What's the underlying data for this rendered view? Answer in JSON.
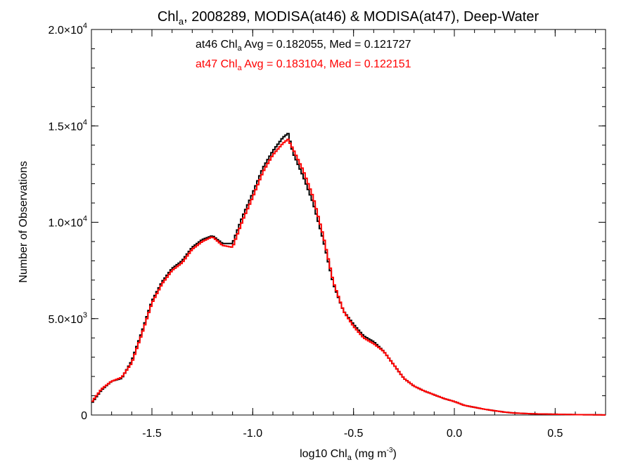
{
  "chart_data": {
    "type": "step-histogram",
    "title": {
      "pre": "Chl",
      "sub": "a",
      "post": ", 2008289, MODISA(at46) & MODISA(at47), Deep-Water"
    },
    "xlabel": {
      "pre": "log10 Chl",
      "sub": "a",
      "mid": " (mg m",
      "sup": "-3",
      "post": ")"
    },
    "ylabel": "Number of Observations",
    "xlim": [
      -1.8,
      0.75
    ],
    "ylim": [
      0,
      20000
    ],
    "x_ticks": [
      {
        "value": -1.5,
        "label": "-1.5"
      },
      {
        "value": -1.0,
        "label": "-1.0"
      },
      {
        "value": -0.5,
        "label": "-0.5"
      },
      {
        "value": 0.0,
        "label": "0.0"
      },
      {
        "value": 0.5,
        "label": "0.5"
      }
    ],
    "y_ticks": [
      {
        "value": 0,
        "mant": "0",
        "exp": ""
      },
      {
        "value": 5000,
        "mant": "5.0×10",
        "exp": "3"
      },
      {
        "value": 10000,
        "mant": "1.0×10",
        "exp": "4"
      },
      {
        "value": 15000,
        "mant": "1.5×10",
        "exp": "4"
      },
      {
        "value": 20000,
        "mant": "2.0×10",
        "exp": "4"
      }
    ],
    "annotations": [
      {
        "pre": "at46 Chl",
        "sub": "a",
        "post": " Avg = 0.182055, Med = 0.121727",
        "color": "#000000"
      },
      {
        "pre": "at47 Chl",
        "sub": "a",
        "post": " Avg = 0.183104, Med = 0.122151",
        "color": "#ff0000"
      }
    ],
    "series": [
      {
        "name": "at46",
        "color": "#000000",
        "x": [
          -1.8,
          -1.75,
          -1.7,
          -1.65,
          -1.6,
          -1.55,
          -1.5,
          -1.45,
          -1.4,
          -1.35,
          -1.3,
          -1.25,
          -1.2,
          -1.15,
          -1.1,
          -1.05,
          -1.0,
          -0.95,
          -0.9,
          -0.85,
          -0.825,
          -0.8,
          -0.75,
          -0.7,
          -0.65,
          -0.6,
          -0.55,
          -0.5,
          -0.45,
          -0.4,
          -0.35,
          -0.3,
          -0.25,
          -0.2,
          -0.15,
          -0.1,
          -0.05,
          0.0,
          0.05,
          0.1,
          0.15,
          0.2,
          0.25,
          0.3,
          0.35,
          0.4,
          0.45,
          0.5,
          0.55,
          0.6,
          0.65,
          0.7,
          0.75
        ],
        "y": [
          600,
          1300,
          1750,
          1900,
          2800,
          4300,
          5900,
          6900,
          7600,
          8000,
          8700,
          9100,
          9300,
          8900,
          8900,
          10300,
          11500,
          12800,
          13700,
          14400,
          14600,
          13600,
          12400,
          11000,
          9100,
          6800,
          5400,
          4700,
          4100,
          3800,
          3300,
          2600,
          1900,
          1500,
          1250,
          1050,
          850,
          700,
          500,
          400,
          300,
          220,
          150,
          100,
          80,
          60,
          50,
          40,
          30,
          20,
          15,
          10,
          5
        ]
      },
      {
        "name": "at47",
        "color": "#ff0000",
        "x": [
          -1.8,
          -1.75,
          -1.7,
          -1.65,
          -1.6,
          -1.55,
          -1.5,
          -1.45,
          -1.4,
          -1.35,
          -1.3,
          -1.25,
          -1.2,
          -1.15,
          -1.1,
          -1.05,
          -1.0,
          -0.95,
          -0.9,
          -0.85,
          -0.825,
          -0.8,
          -0.75,
          -0.7,
          -0.65,
          -0.6,
          -0.55,
          -0.5,
          -0.45,
          -0.4,
          -0.35,
          -0.3,
          -0.25,
          -0.2,
          -0.15,
          -0.1,
          -0.05,
          0.0,
          0.05,
          0.1,
          0.15,
          0.2,
          0.25,
          0.3,
          0.35,
          0.4,
          0.45,
          0.5,
          0.55,
          0.6,
          0.65,
          0.7,
          0.75
        ],
        "y": [
          650,
          1350,
          1750,
          1950,
          2700,
          4200,
          5800,
          6800,
          7500,
          7900,
          8600,
          9000,
          9250,
          8800,
          8700,
          10100,
          11300,
          12600,
          13500,
          14100,
          14300,
          13800,
          12700,
          11300,
          9300,
          6900,
          5400,
          4600,
          4000,
          3700,
          3300,
          2600,
          1900,
          1500,
          1250,
          1050,
          850,
          700,
          500,
          400,
          300,
          220,
          150,
          100,
          80,
          60,
          50,
          40,
          30,
          20,
          15,
          10,
          5
        ]
      }
    ]
  }
}
